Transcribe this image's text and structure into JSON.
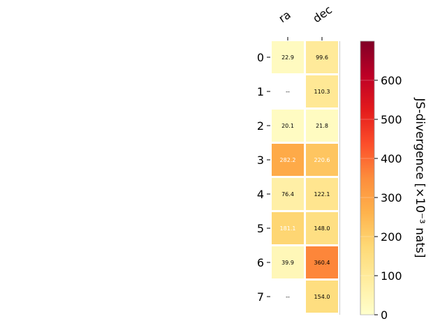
{
  "chart_data": {
    "type": "heatmap",
    "columns": [
      "ra",
      "dec"
    ],
    "rows": [
      "0",
      "1",
      "2",
      "3",
      "4",
      "5",
      "6",
      "7"
    ],
    "values": [
      [
        22.9,
        99.6
      ],
      [
        null,
        110.3
      ],
      [
        20.1,
        21.8
      ],
      [
        282.2,
        220.6
      ],
      [
        76.4,
        122.1
      ],
      [
        181.1,
        148.0
      ],
      [
        39.9,
        360.4
      ],
      [
        null,
        154.0
      ]
    ],
    "cell_labels": [
      [
        "22.9",
        "99.6"
      ],
      [
        "--",
        "110.3"
      ],
      [
        "20.1",
        "21.8"
      ],
      [
        "282.2",
        "220.6"
      ],
      [
        "76.4",
        "122.1"
      ],
      [
        "181.1",
        "148.0"
      ],
      [
        "39.9",
        "360.4"
      ],
      [
        "--",
        "154.0"
      ]
    ],
    "missing_label": "--",
    "colorbar": {
      "label": "JS-divergence [×10⁻³ nats]",
      "range": [
        0,
        700
      ],
      "ticks": [
        0,
        100,
        200,
        300,
        400,
        500,
        600
      ],
      "colormap": "YlOrRd",
      "colormap_stops": [
        "#ffffcc",
        "#ffeda0",
        "#fed976",
        "#feb24c",
        "#fd8d3c",
        "#fc4e2a",
        "#e31a1c",
        "#bd0026",
        "#800026"
      ]
    },
    "grid": false,
    "cell_text_dark": "#000000",
    "cell_text_light": "#ffffff"
  }
}
